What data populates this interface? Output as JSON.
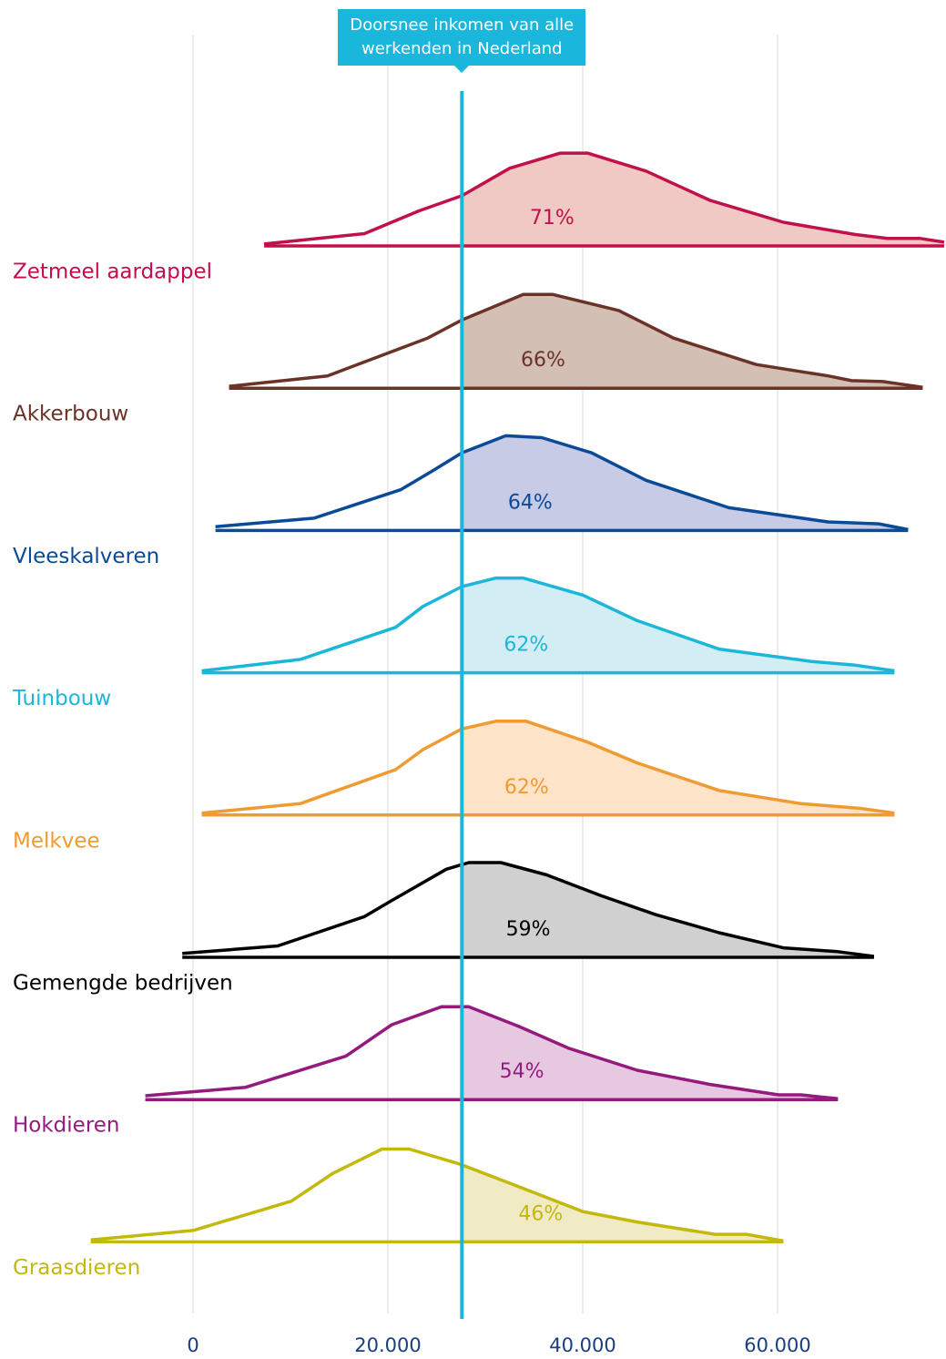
{
  "chart_data": {
    "type": "ridgeline",
    "xlim": [
      -19800,
      77300
    ],
    "xticks": [
      0,
      {
        "value": 20000,
        "label": "20.000"
      },
      {
        "value": 40000,
        "label": "40.000"
      },
      {
        "value": 60000,
        "label": "60.000"
      }
    ],
    "ylim": [
      0,
      100
    ],
    "grid": true,
    "reference_line": {
      "value": 27600,
      "label": "Doorsnee inkomen van alle werkenden in Nederland",
      "color": "#1ab6dc"
    },
    "series": [
      {
        "name": "Zetmeel aardappel",
        "color": "#c0114a",
        "fill": "#f0c8c4",
        "share": 71,
        "share_label": "71%",
        "x": [
          7300,
          17600,
          23200,
          27600,
          32500,
          37700,
          40500,
          46500,
          53100,
          60600,
          68000,
          71300,
          74600,
          77100
        ],
        "density": [
          2,
          13,
          37,
          53,
          82,
          98,
          98,
          79,
          48,
          25,
          12,
          8,
          8,
          4
        ]
      },
      {
        "name": "Akkerbouw",
        "color": "#6b3328",
        "fill": "#d4bfb4",
        "share": 66,
        "share_label": "66%",
        "x": [
          3700,
          13800,
          24100,
          27600,
          33900,
          36900,
          43700,
          49300,
          57800,
          65200,
          67600,
          70800,
          74900
        ],
        "density": [
          2,
          13,
          53,
          72,
          99,
          99,
          82,
          53,
          25,
          13,
          8,
          7,
          1
        ]
      },
      {
        "name": "Vleeskalveren",
        "color": "#0b4a96",
        "fill": "#c8cbe6",
        "share": 64,
        "share_label": "64%",
        "x": [
          2300,
          12400,
          21300,
          24600,
          27600,
          32100,
          35800,
          40900,
          46500,
          55000,
          65200,
          70400,
          73400
        ],
        "density": [
          4,
          13,
          43,
          63,
          82,
          100,
          98,
          82,
          53,
          24,
          9,
          7,
          1
        ]
      },
      {
        "name": "Tuinbouw",
        "color": "#1ab7d9",
        "fill": "#d3edf5",
        "share": 62,
        "share_label": "62%",
        "x": [
          900,
          11000,
          20800,
          23600,
          27600,
          31100,
          33900,
          40000,
          45600,
          54000,
          63400,
          68000,
          72000
        ],
        "density": [
          2,
          14,
          48,
          70,
          91,
          100,
          100,
          82,
          55,
          25,
          12,
          8,
          2
        ]
      },
      {
        "name": "Melkvee",
        "color": "#f09a32",
        "fill": "#fde3c7",
        "share": 62,
        "share_label": "62%",
        "x": [
          900,
          11000,
          20800,
          23600,
          27600,
          31100,
          34200,
          40500,
          45600,
          54000,
          62400,
          68500,
          72000
        ],
        "density": [
          2,
          12,
          48,
          69,
          91,
          99,
          99,
          77,
          55,
          26,
          12,
          7,
          2
        ]
      },
      {
        "name": "Gemengde bedrijven",
        "color": "#000000",
        "fill": "#d0d0d0",
        "share": 59,
        "share_label": "59%",
        "x": [
          -1100,
          8700,
          17600,
          20400,
          26000,
          28300,
          31600,
          36300,
          41900,
          47500,
          54000,
          60600,
          66200,
          69900
        ],
        "density": [
          4,
          12,
          43,
          60,
          93,
          100,
          100,
          87,
          65,
          45,
          26,
          10,
          6,
          1
        ]
      },
      {
        "name": "Hokdieren",
        "color": "#951a7e",
        "fill": "#e6c9e0",
        "share": 54,
        "share_label": "54%",
        "x": [
          -4900,
          5400,
          15700,
          20400,
          25500,
          28300,
          33500,
          38600,
          45600,
          53100,
          60100,
          62400,
          66200
        ],
        "density": [
          4,
          13,
          46,
          79,
          98,
          98,
          77,
          54,
          31,
          16,
          5,
          5,
          1
        ]
      },
      {
        "name": "Graasdieren",
        "color": "#c3b80c",
        "fill": "#f0ebc4",
        "share": 46,
        "share_label": "46%",
        "x": [
          -10500,
          0,
          10100,
          14300,
          19400,
          22200,
          27400,
          33500,
          40000,
          45600,
          53600,
          56800,
          60600
        ],
        "density": [
          2,
          12,
          43,
          72,
          98,
          98,
          82,
          58,
          32,
          21,
          8,
          8,
          1
        ]
      }
    ]
  }
}
